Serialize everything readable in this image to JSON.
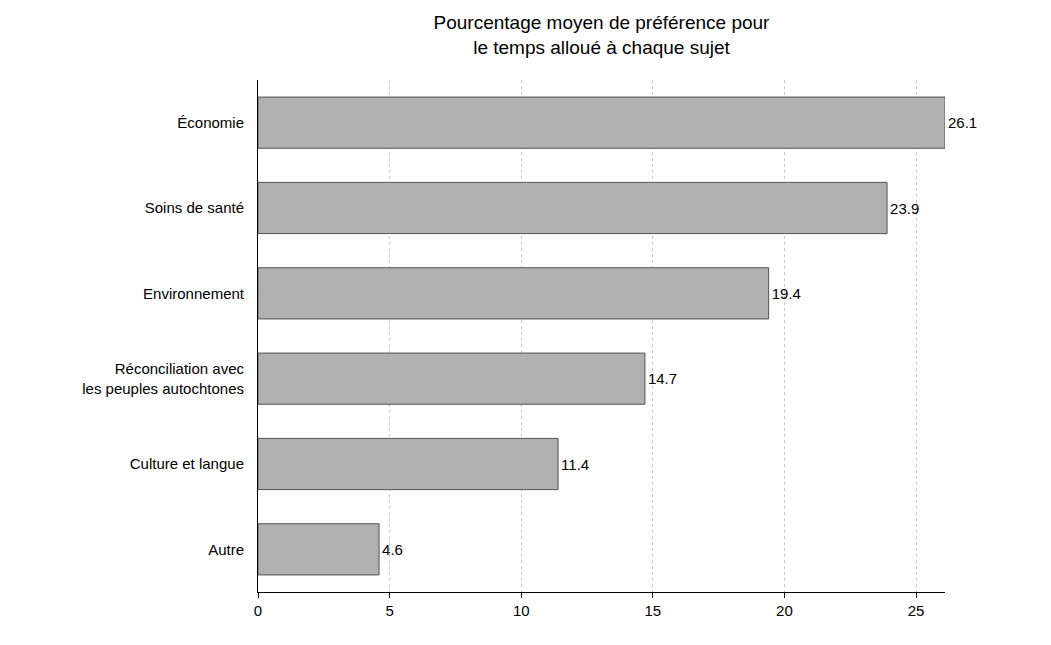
{
  "chart_data": {
    "type": "bar",
    "orientation": "horizontal",
    "title": "Pourcentage moyen de préférence pour\nle temps alloué à chaque sujet",
    "categories": [
      "Économie",
      "Soins de santé",
      "Environnement",
      "Réconciliation avec\nles peuples autochtones",
      "Culture et langue",
      "Autre"
    ],
    "values": [
      26.1,
      23.9,
      19.4,
      14.7,
      11.4,
      4.6
    ],
    "color": "#b0b0b0",
    "xlim": [
      0,
      26.1
    ],
    "xticks": [
      0,
      5,
      10,
      15,
      20,
      25
    ],
    "grid": true,
    "data_labels": true
  }
}
